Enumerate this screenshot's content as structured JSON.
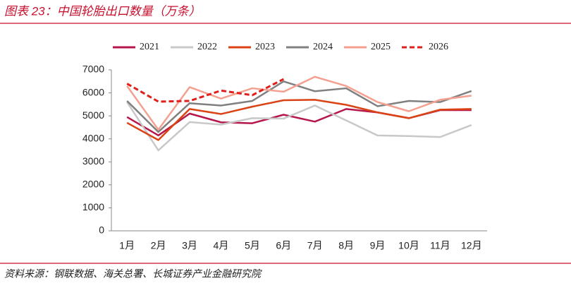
{
  "chart_data": {
    "type": "line",
    "title": "图表 23：中国轮胎出口数量（万条）",
    "source": "资料来源：钢联数据、海关总署、长城证券产业金融研究院",
    "categories": [
      "1月",
      "2月",
      "3月",
      "4月",
      "5月",
      "6月",
      "7月",
      "8月",
      "9月",
      "10月",
      "11月",
      "12月"
    ],
    "series": [
      {
        "name": "2021",
        "color": "#b5174b",
        "values": [
          4950,
          4150,
          5100,
          4720,
          4680,
          5050,
          4750,
          5300,
          5150,
          4900,
          5250,
          5250
        ]
      },
      {
        "name": "2022",
        "color": "#c8c8c8",
        "values": [
          5600,
          3500,
          4730,
          4620,
          4900,
          4880,
          5450,
          4800,
          4150,
          4120,
          4080,
          4600
        ]
      },
      {
        "name": "2023",
        "color": "#d94315",
        "values": [
          4700,
          3950,
          5300,
          5080,
          5400,
          5680,
          5700,
          5480,
          5150,
          4900,
          5270,
          5300
        ]
      },
      {
        "name": "2024",
        "color": "#808080",
        "values": [
          5650,
          4300,
          5550,
          5450,
          5650,
          6500,
          6070,
          6200,
          5420,
          5650,
          5600,
          6080
        ]
      },
      {
        "name": "2025",
        "color": "#f4a090",
        "values": [
          6300,
          4400,
          6250,
          5750,
          6200,
          6050,
          6700,
          6300,
          5600,
          5200,
          5700,
          5880
        ]
      },
      {
        "name": "2026",
        "color": "#e0201b",
        "dashed": true,
        "values": [
          6400,
          5620,
          5650,
          6100,
          5900,
          6600,
          null,
          null,
          null,
          null,
          null,
          null
        ]
      }
    ],
    "ylim": [
      0,
      7000
    ],
    "yticks": [
      0,
      1000,
      2000,
      3000,
      4000,
      5000,
      6000,
      7000
    ],
    "legend": "top"
  }
}
